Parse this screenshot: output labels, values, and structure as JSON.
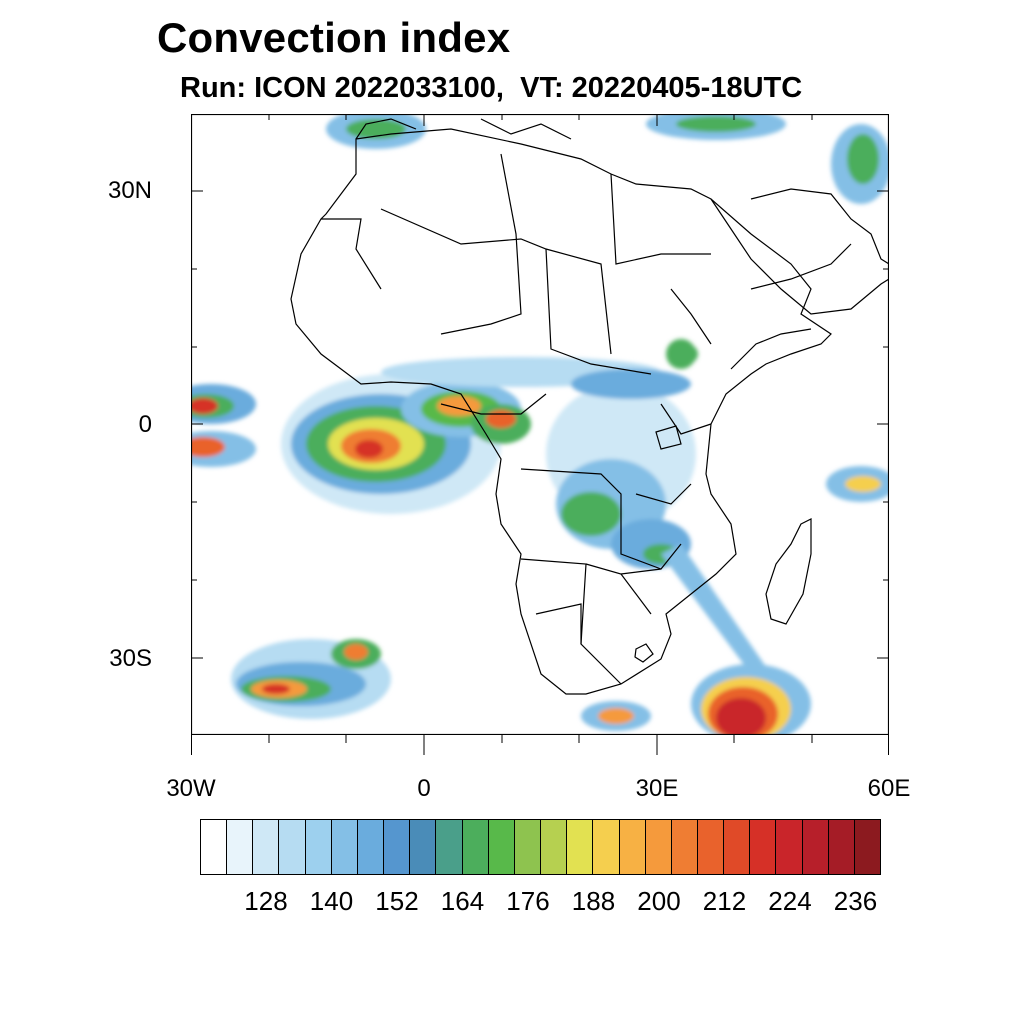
{
  "header": {
    "title": "Convection index",
    "subtitle": "Run: ICON 2022033100,  VT: 20220405-18UTC"
  },
  "axes": {
    "lat_labels": [
      "30N",
      "0",
      "30S"
    ],
    "lon_labels": [
      "30W",
      "0",
      "30E",
      "60E"
    ],
    "lon_range": [
      -30,
      60
    ],
    "lat_range": [
      -40,
      40
    ]
  },
  "colorbar": {
    "colors": [
      "#ffffff",
      "#e8f4fb",
      "#cfe8f6",
      "#b6dcf2",
      "#9dd0ee",
      "#84bfe6",
      "#6aacdd",
      "#5596cf",
      "#4a8cb8",
      "#4a9f8a",
      "#4cae5c",
      "#58b94a",
      "#8ec34f",
      "#b6d050",
      "#e2e151",
      "#f5cf4e",
      "#f7b144",
      "#f59a3c",
      "#ef7d33",
      "#e9622c",
      "#e04a28",
      "#d63027",
      "#c9252a",
      "#b71f2a",
      "#a51c26",
      "#8c1a1f"
    ],
    "tick_labels": [
      "128",
      "140",
      "152",
      "164",
      "176",
      "188",
      "200",
      "212",
      "224",
      "236"
    ]
  },
  "map_features": {
    "land_outline": "Africa and Arabian Peninsula with national borders",
    "convection_regions": [
      {
        "name": "Gulf of Guinea / Atlantic equatorial",
        "intensity": "high"
      },
      {
        "name": "Central Africa / Congo basin",
        "intensity": "medium"
      },
      {
        "name": "South Atlantic low",
        "intensity": "high"
      },
      {
        "name": "Southwest Indian Ocean",
        "intensity": "very-high"
      },
      {
        "name": "Mediterranean / Middle East north",
        "intensity": "medium"
      },
      {
        "name": "Western equatorial Atlantic",
        "intensity": "high"
      }
    ]
  }
}
